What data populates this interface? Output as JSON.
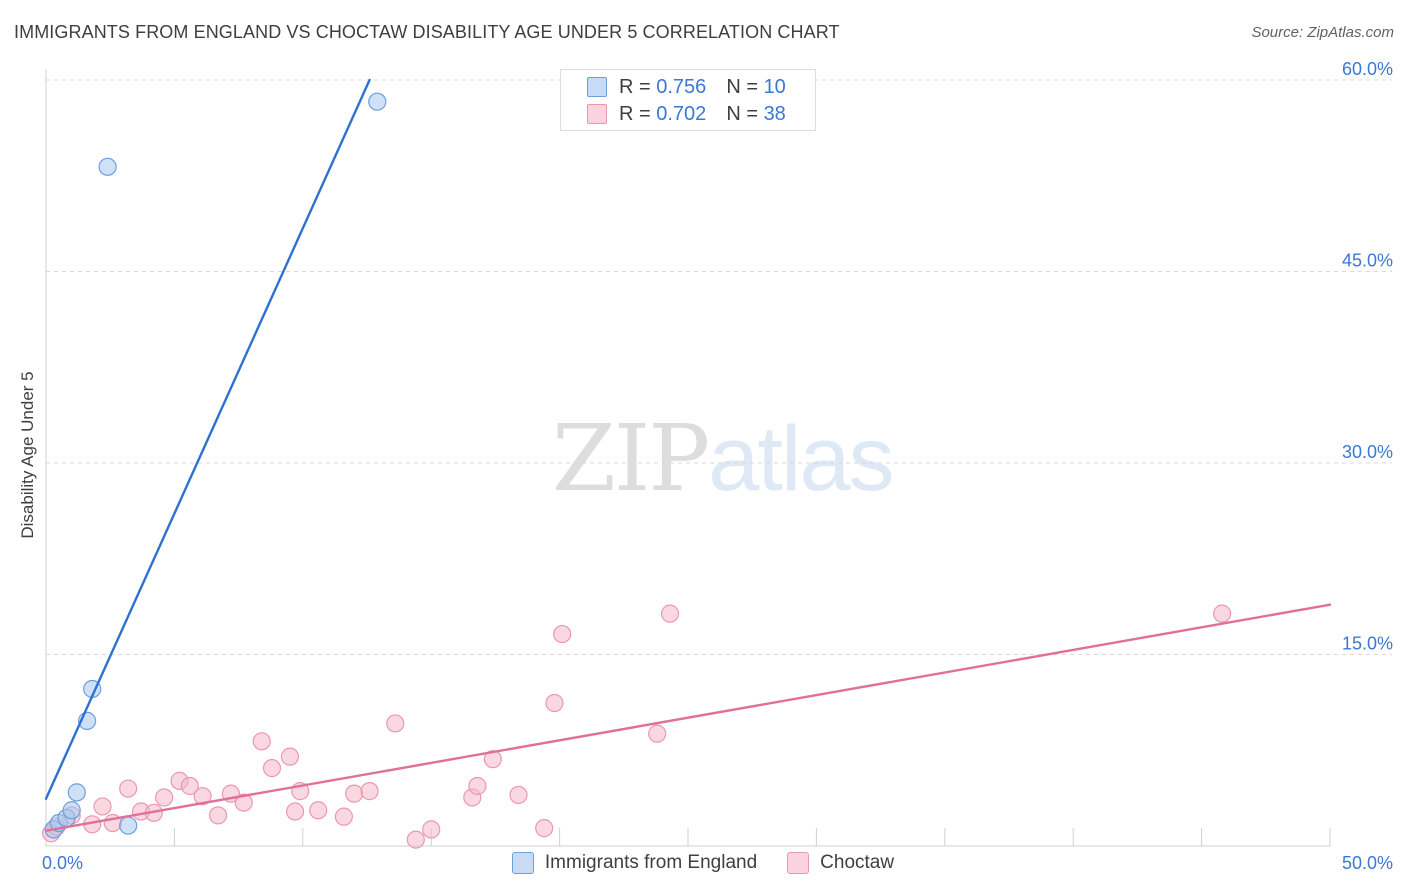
{
  "header": {
    "title": "IMMIGRANTS FROM ENGLAND VS CHOCTAW DISABILITY AGE UNDER 5 CORRELATION CHART",
    "source": "Source: ZipAtlas.com"
  },
  "watermark": {
    "zip": "ZIP",
    "atlas": "atlas"
  },
  "legend": {
    "r_label": "R =",
    "n_label": "N =",
    "items": [
      {
        "r": "0.756",
        "n": "10",
        "color": "#a8c8f0"
      },
      {
        "r": "0.702",
        "n": "38",
        "color": "#f6b8c8"
      }
    ]
  },
  "chart_data": {
    "type": "scatter",
    "title": "IMMIGRANTS FROM ENGLAND VS CHOCTAW DISABILITY AGE UNDER 5 CORRELATION CHART",
    "xlabel": "",
    "ylabel": "Disability Age Under 5",
    "xlim": [
      0,
      50
    ],
    "ylim": [
      0,
      60
    ],
    "x_tick_labels": [
      "0.0%",
      "50.0%"
    ],
    "y_ticks": [
      15,
      30,
      45,
      60
    ],
    "y_tick_labels": [
      "15.0%",
      "30.0%",
      "45.0%",
      "60.0%"
    ],
    "grid": true,
    "series": [
      {
        "name": "Immigrants from England",
        "color": "#a8c8f0",
        "stroke": "#6d9fdc",
        "line_color": "#2e72cf",
        "points": [
          [
            0.3,
            1.3
          ],
          [
            0.5,
            1.8
          ],
          [
            0.8,
            2.2
          ],
          [
            1.0,
            2.8
          ],
          [
            1.2,
            4.2
          ],
          [
            1.6,
            9.8
          ],
          [
            1.8,
            12.3
          ],
          [
            2.4,
            53.2
          ],
          [
            3.2,
            1.6
          ],
          [
            12.9,
            58.3
          ]
        ],
        "trend": [
          [
            0.0,
            3.7
          ],
          [
            12.6,
            60.0
          ]
        ]
      },
      {
        "name": "Choctaw",
        "color": "#f6b8c8",
        "stroke": "#ea98b0",
        "line_color": "#e0709a",
        "points": [
          [
            0.2,
            1.0
          ],
          [
            0.4,
            1.5
          ],
          [
            1.0,
            2.4
          ],
          [
            1.8,
            1.7
          ],
          [
            2.2,
            3.1
          ],
          [
            2.6,
            1.8
          ],
          [
            3.2,
            4.5
          ],
          [
            3.7,
            2.7
          ],
          [
            4.2,
            2.6
          ],
          [
            4.6,
            3.8
          ],
          [
            5.2,
            5.1
          ],
          [
            5.6,
            4.7
          ],
          [
            6.1,
            3.9
          ],
          [
            6.7,
            2.4
          ],
          [
            7.2,
            4.1
          ],
          [
            7.7,
            3.4
          ],
          [
            8.4,
            8.2
          ],
          [
            8.8,
            6.1
          ],
          [
            9.5,
            7.0
          ],
          [
            9.7,
            2.7
          ],
          [
            9.9,
            4.3
          ],
          [
            10.6,
            2.8
          ],
          [
            11.6,
            2.3
          ],
          [
            12.0,
            4.1
          ],
          [
            12.6,
            4.3
          ],
          [
            13.6,
            9.6
          ],
          [
            14.4,
            0.5
          ],
          [
            15.0,
            1.3
          ],
          [
            16.6,
            3.8
          ],
          [
            16.8,
            4.7
          ],
          [
            17.4,
            6.8
          ],
          [
            18.4,
            4.0
          ],
          [
            19.4,
            1.4
          ],
          [
            19.8,
            11.2
          ],
          [
            20.1,
            16.6
          ],
          [
            23.8,
            8.8
          ],
          [
            24.3,
            18.2
          ],
          [
            45.8,
            18.2
          ]
        ],
        "trend": [
          [
            0.0,
            1.2
          ],
          [
            50.0,
            18.9
          ]
        ]
      }
    ]
  }
}
